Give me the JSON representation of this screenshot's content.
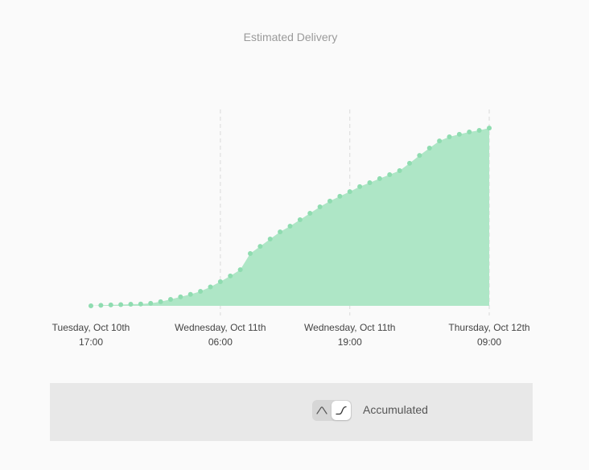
{
  "chart_data": {
    "type": "area",
    "title": "Estimated Delivery",
    "xlabel": "",
    "ylabel": "",
    "x_ticks": [
      {
        "x": 0,
        "line1": "Tuesday, Oct 10th",
        "line2": "17:00"
      },
      {
        "x": 13,
        "line1": "Wednesday, Oct 11th",
        "line2": "06:00"
      },
      {
        "x": 26,
        "line1": "Wednesday, Oct 11th",
        "line2": "19:00"
      },
      {
        "x": 40,
        "line1": "Thursday, Oct 12th",
        "line2": "09:00"
      }
    ],
    "x_unit": "hours after Tuesday, Oct 10th 17:00",
    "xlim": [
      0,
      40
    ],
    "ylim": [
      0,
      100
    ],
    "grid": "vertical dashed lines at labeled ticks",
    "series": [
      {
        "color": "#aee6c6",
        "point_color": "#8fdcb0",
        "x": [
          0,
          1,
          2,
          3,
          4,
          5,
          6,
          7,
          8,
          9,
          10,
          11,
          12,
          13,
          14,
          15,
          16,
          17,
          18,
          19,
          20,
          21,
          22,
          23,
          24,
          25,
          26,
          27,
          28,
          29,
          30,
          31,
          32,
          33,
          34,
          35,
          36,
          37,
          38,
          39,
          40
        ],
        "values": [
          0,
          0.3,
          0.5,
          0.7,
          0.9,
          1,
          1.4,
          2.3,
          3.6,
          5,
          6.4,
          8.1,
          10.6,
          13.5,
          16.7,
          20.2,
          29.3,
          33.3,
          37.4,
          41.4,
          44.6,
          48.2,
          51.8,
          55.4,
          58.6,
          61.3,
          63.9,
          66.7,
          68.9,
          71.2,
          73.4,
          75.7,
          79.8,
          84.2,
          88.3,
          92.3,
          94.6,
          96,
          97.3,
          98.2,
          99.5
        ]
      }
    ]
  },
  "controls": {
    "mode_label": "Accumulated",
    "toggle_left_icon": "bell-curve-icon",
    "toggle_right_icon": "cumulative-curve-icon",
    "selected": "cumulative"
  }
}
